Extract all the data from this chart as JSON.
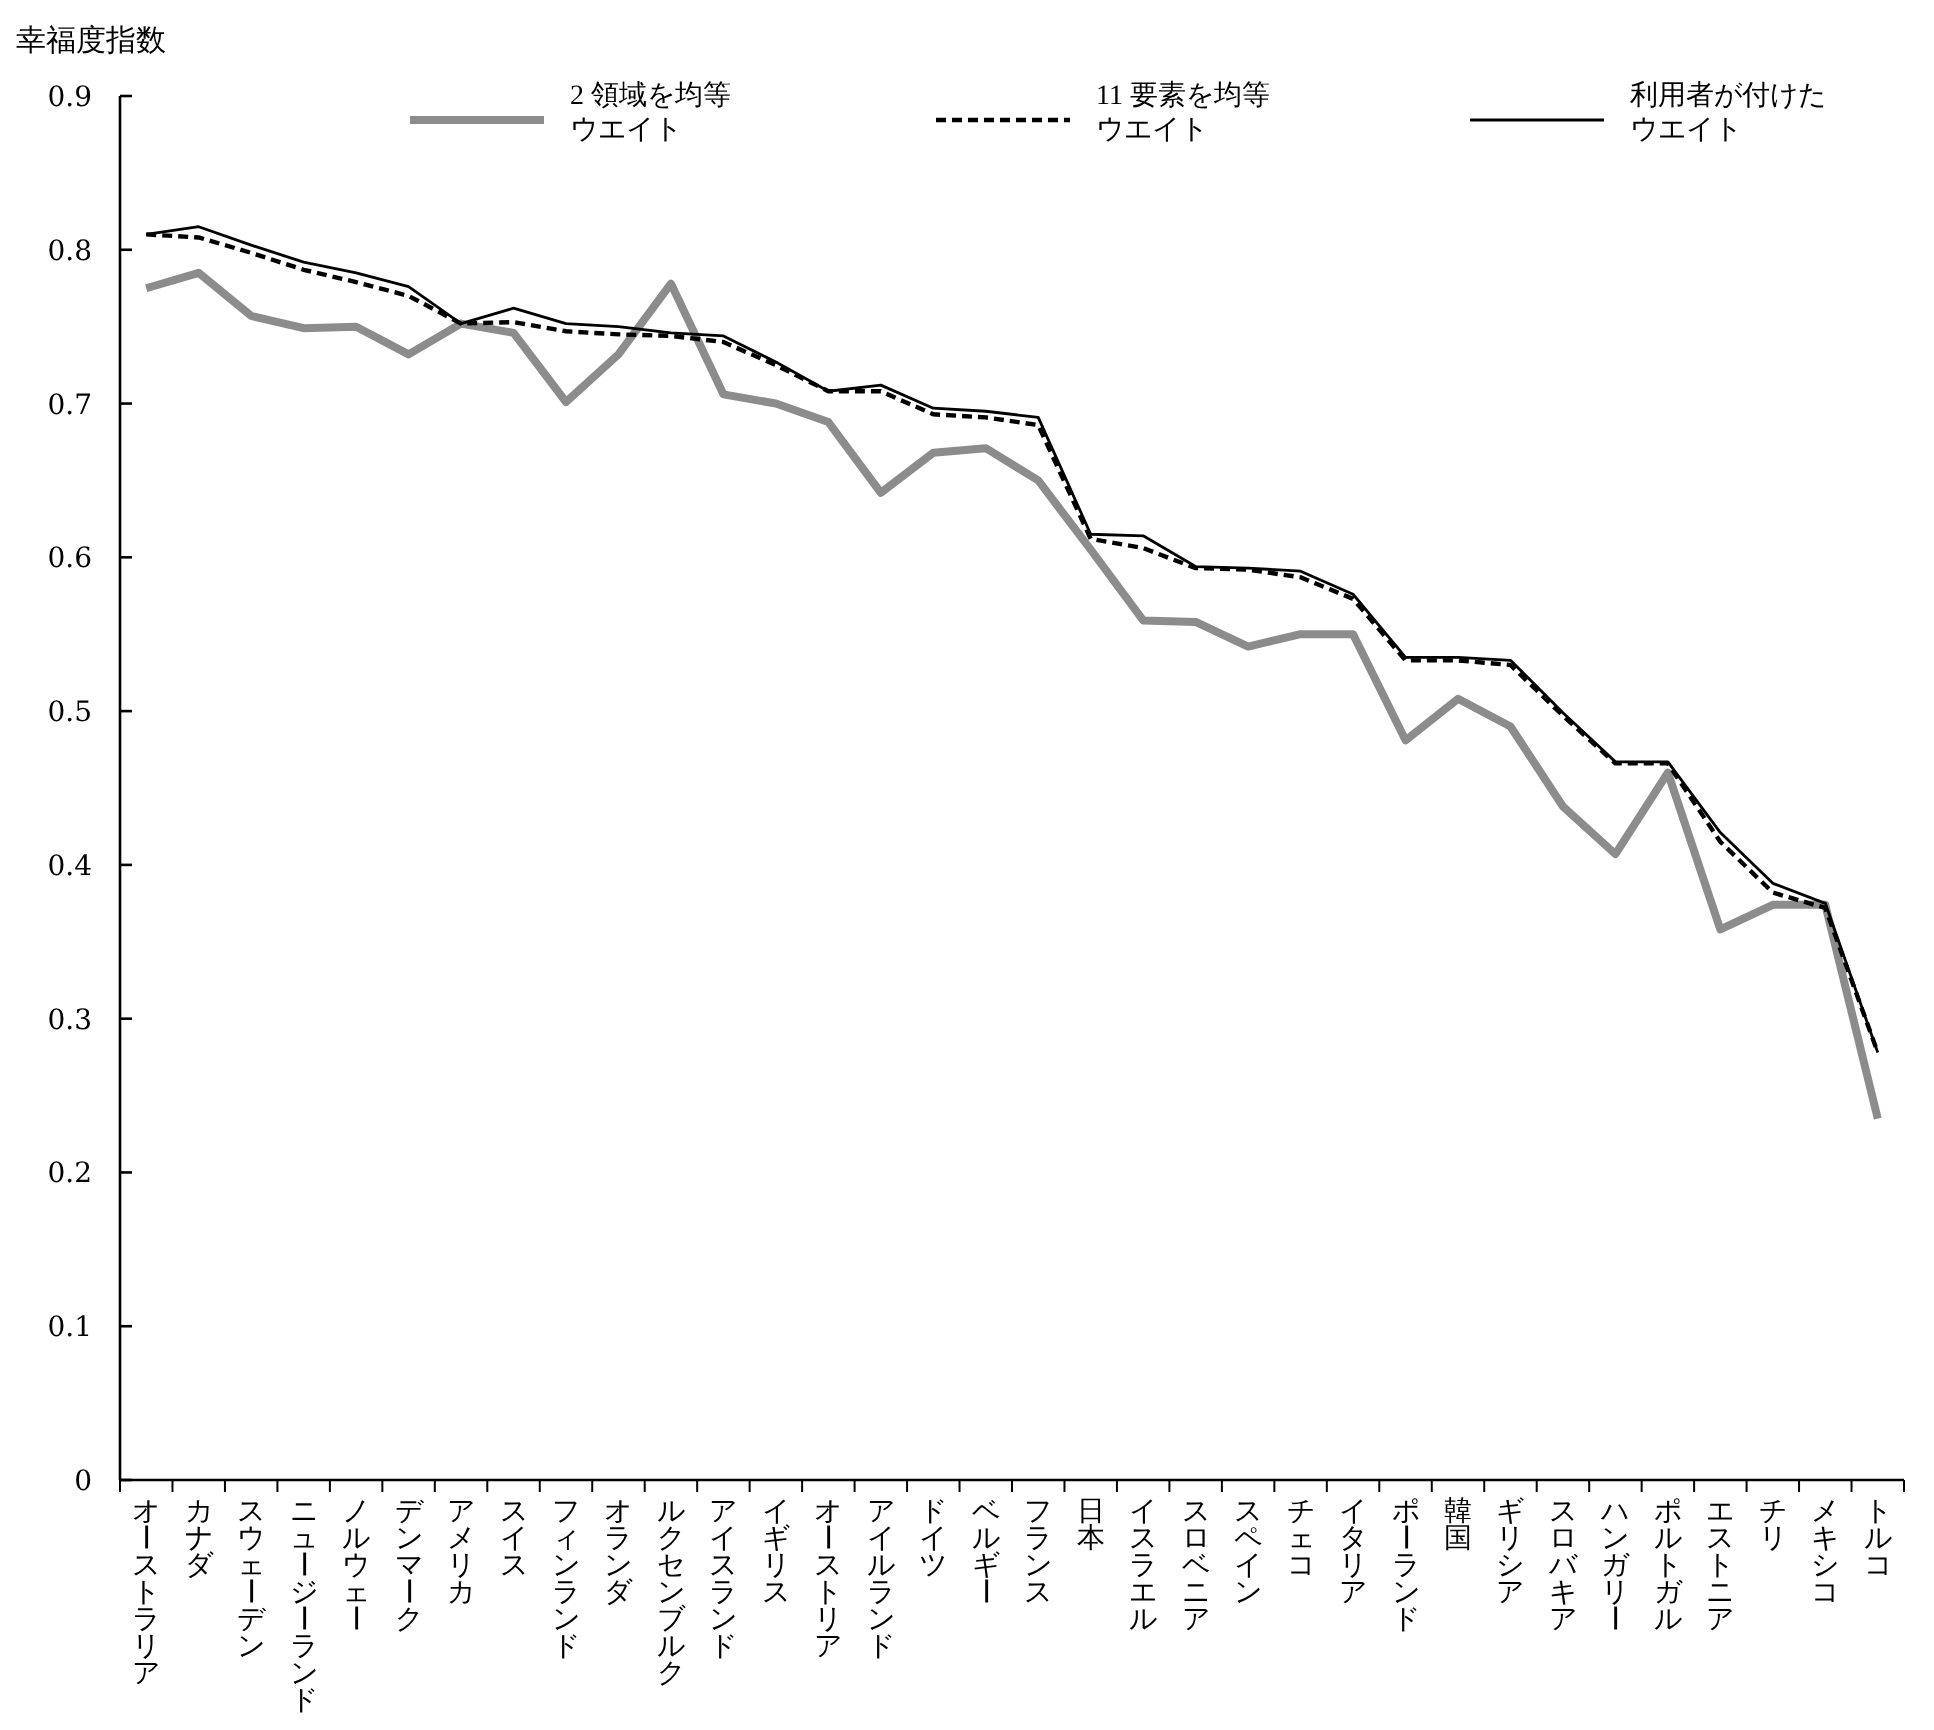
{
  "chart_data": {
    "type": "line",
    "ylabel": "幸福度指数",
    "ylim": [
      0,
      0.9
    ],
    "yticks": [
      0,
      0.1,
      0.2,
      0.3,
      0.4,
      0.5,
      0.6,
      0.7,
      0.8,
      0.9
    ],
    "grid": false,
    "legend": "top",
    "marker": "none",
    "categories": [
      "オーストラリア",
      "カナダ",
      "スウェーデン",
      "ニュージーランド",
      "ノルウェー",
      "デンマーク",
      "アメリカ",
      "スイス",
      "フィンランド",
      "オランダ",
      "ルクセンブルク",
      "アイスランド",
      "イギリス",
      "オーストリア",
      "アイルランド",
      "ドイツ",
      "ベルギー",
      "フランス",
      "日本",
      "イスラエル",
      "スロベニア",
      "スペイン",
      "チェコ",
      "イタリア",
      "ポーランド",
      "韓国",
      "ギリシア",
      "スロバキア",
      "ハンガリー",
      "ポルトガル",
      "エストニア",
      "チリ",
      "メキシコ",
      "トルコ"
    ],
    "series": [
      {
        "name": "2 領域を均等ウエイト",
        "color": "#8c8c8c",
        "line_style": "solid",
        "values": [
          0.775,
          0.785,
          0.757,
          0.749,
          0.75,
          0.732,
          0.752,
          0.746,
          0.701,
          0.732,
          0.778,
          0.706,
          0.7,
          0.688,
          0.642,
          0.668,
          0.671,
          0.65,
          0.605,
          0.559,
          0.558,
          0.542,
          0.55,
          0.55,
          0.481,
          0.508,
          0.49,
          0.438,
          0.407,
          0.46,
          0.358,
          0.374,
          0.374,
          0.235
        ]
      },
      {
        "name": "11 要素を均等ウエイト",
        "color": "#000000",
        "line_style": "dashed",
        "values": [
          0.81,
          0.808,
          0.798,
          0.787,
          0.779,
          0.77,
          0.752,
          0.753,
          0.747,
          0.745,
          0.744,
          0.74,
          0.725,
          0.708,
          0.708,
          0.693,
          0.691,
          0.686,
          0.612,
          0.606,
          0.593,
          0.592,
          0.587,
          0.573,
          0.533,
          0.533,
          0.53,
          0.497,
          0.466,
          0.466,
          0.415,
          0.382,
          0.372,
          0.278
        ]
      },
      {
        "name": "利用者が付けたウエイト",
        "color": "#000000",
        "line_style": "solid",
        "values": [
          0.81,
          0.815,
          0.803,
          0.792,
          0.785,
          0.776,
          0.752,
          0.762,
          0.752,
          0.75,
          0.746,
          0.744,
          0.727,
          0.708,
          0.712,
          0.697,
          0.695,
          0.691,
          0.615,
          0.614,
          0.594,
          0.593,
          0.591,
          0.576,
          0.535,
          0.535,
          0.533,
          0.499,
          0.467,
          0.467,
          0.421,
          0.388,
          0.375,
          0.278
        ]
      }
    ]
  }
}
